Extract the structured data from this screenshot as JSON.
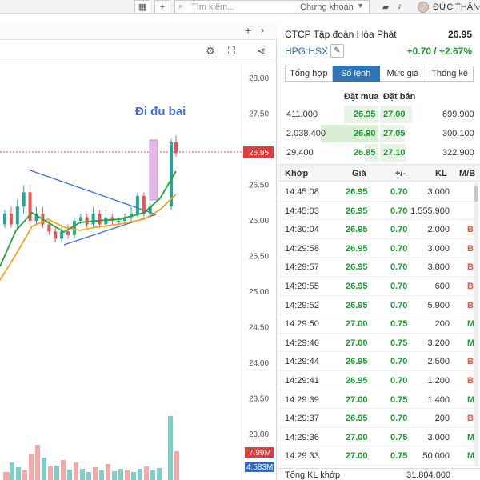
{
  "topbar": {
    "search_placeholder": "Tìm kiếm...",
    "exchange": "Chứng khoán",
    "username": "ĐỨC THẮNG"
  },
  "chart": {
    "annotation": "Đi đu bai",
    "price_ticks": [
      "28.00",
      "27.50",
      "27.00",
      "26.50",
      "26.00",
      "25.50",
      "25.00",
      "24.50",
      "24.00",
      "23.50",
      "23.00"
    ],
    "price_tag": "26.95",
    "vol_tag_1": "7.99M",
    "vol_tag_2": "4.583M",
    "colors": {
      "up": "#26a69a",
      "down": "#ef5350",
      "ma_fast": "#22a33a",
      "ma_slow": "#f5a623",
      "triangle": "#3f6ce8",
      "highlight": "#e4b8e9"
    }
  },
  "panel": {
    "company": "CTCP Tập đoàn Hòa Phát",
    "price": "26.95",
    "ticker": "HPG:HSX",
    "change": "+0.70 / +2.67%",
    "tabs": [
      "Tổng hợp",
      "Sổ lệnh",
      "Mức giá",
      "Thống kê"
    ],
    "active_tab": 1,
    "orderbook_headers": {
      "buy": "Đặt mua",
      "sell": "Đặt bán"
    },
    "orderbook": [
      {
        "bid_vol": "411.000",
        "bid": "26.95",
        "ask": "27.00",
        "ask_vol": "699.900"
      },
      {
        "bid_vol": "2.038.400",
        "bid": "26.90",
        "ask": "27.05",
        "ask_vol": "300.100"
      },
      {
        "bid_vol": "29.400",
        "bid": "26.85",
        "ask": "27.10",
        "ask_vol": "322.900"
      }
    ],
    "trade_headers": {
      "time": "Khớp",
      "price": "Giá",
      "change": "+/-",
      "vol": "KL",
      "side": "M/B"
    },
    "trades": [
      {
        "time": "14:45:08",
        "price": "26.95",
        "change": "0.70",
        "vol": "3.000",
        "side": ""
      },
      {
        "time": "14:45:03",
        "price": "26.95",
        "change": "0.70",
        "vol": "1.555.900",
        "side": ""
      },
      {
        "time": "14:30:04",
        "price": "26.95",
        "change": "0.70",
        "vol": "2.000",
        "side": "B"
      },
      {
        "time": "14:29:58",
        "price": "26.95",
        "change": "0.70",
        "vol": "3.000",
        "side": "B"
      },
      {
        "time": "14:29:57",
        "price": "26.95",
        "change": "0.70",
        "vol": "3.800",
        "side": "B"
      },
      {
        "time": "14:29:55",
        "price": "26.95",
        "change": "0.70",
        "vol": "600",
        "side": "B"
      },
      {
        "time": "14:29:52",
        "price": "26.95",
        "change": "0.70",
        "vol": "5.900",
        "side": "B"
      },
      {
        "time": "14:29:50",
        "price": "27.00",
        "change": "0.75",
        "vol": "200",
        "side": "M"
      },
      {
        "time": "14:29:46",
        "price": "27.00",
        "change": "0.75",
        "vol": "3.200",
        "side": "M"
      },
      {
        "time": "14:29:44",
        "price": "26.95",
        "change": "0.70",
        "vol": "2.500",
        "side": "B"
      },
      {
        "time": "14:29:41",
        "price": "26.95",
        "change": "0.70",
        "vol": "1.200",
        "side": "B"
      },
      {
        "time": "14:29:39",
        "price": "27.00",
        "change": "0.75",
        "vol": "1.400",
        "side": "M"
      },
      {
        "time": "14:29:37",
        "price": "26.95",
        "change": "0.70",
        "vol": "200",
        "side": "B"
      },
      {
        "time": "14:29:36",
        "price": "27.00",
        "change": "0.75",
        "vol": "3.000",
        "side": "M"
      },
      {
        "time": "14:29:33",
        "price": "27.00",
        "change": "0.75",
        "vol": "50.000",
        "side": "M"
      }
    ],
    "footer_label": "Tổng KL khớp",
    "footer_value": "31.804.000"
  }
}
